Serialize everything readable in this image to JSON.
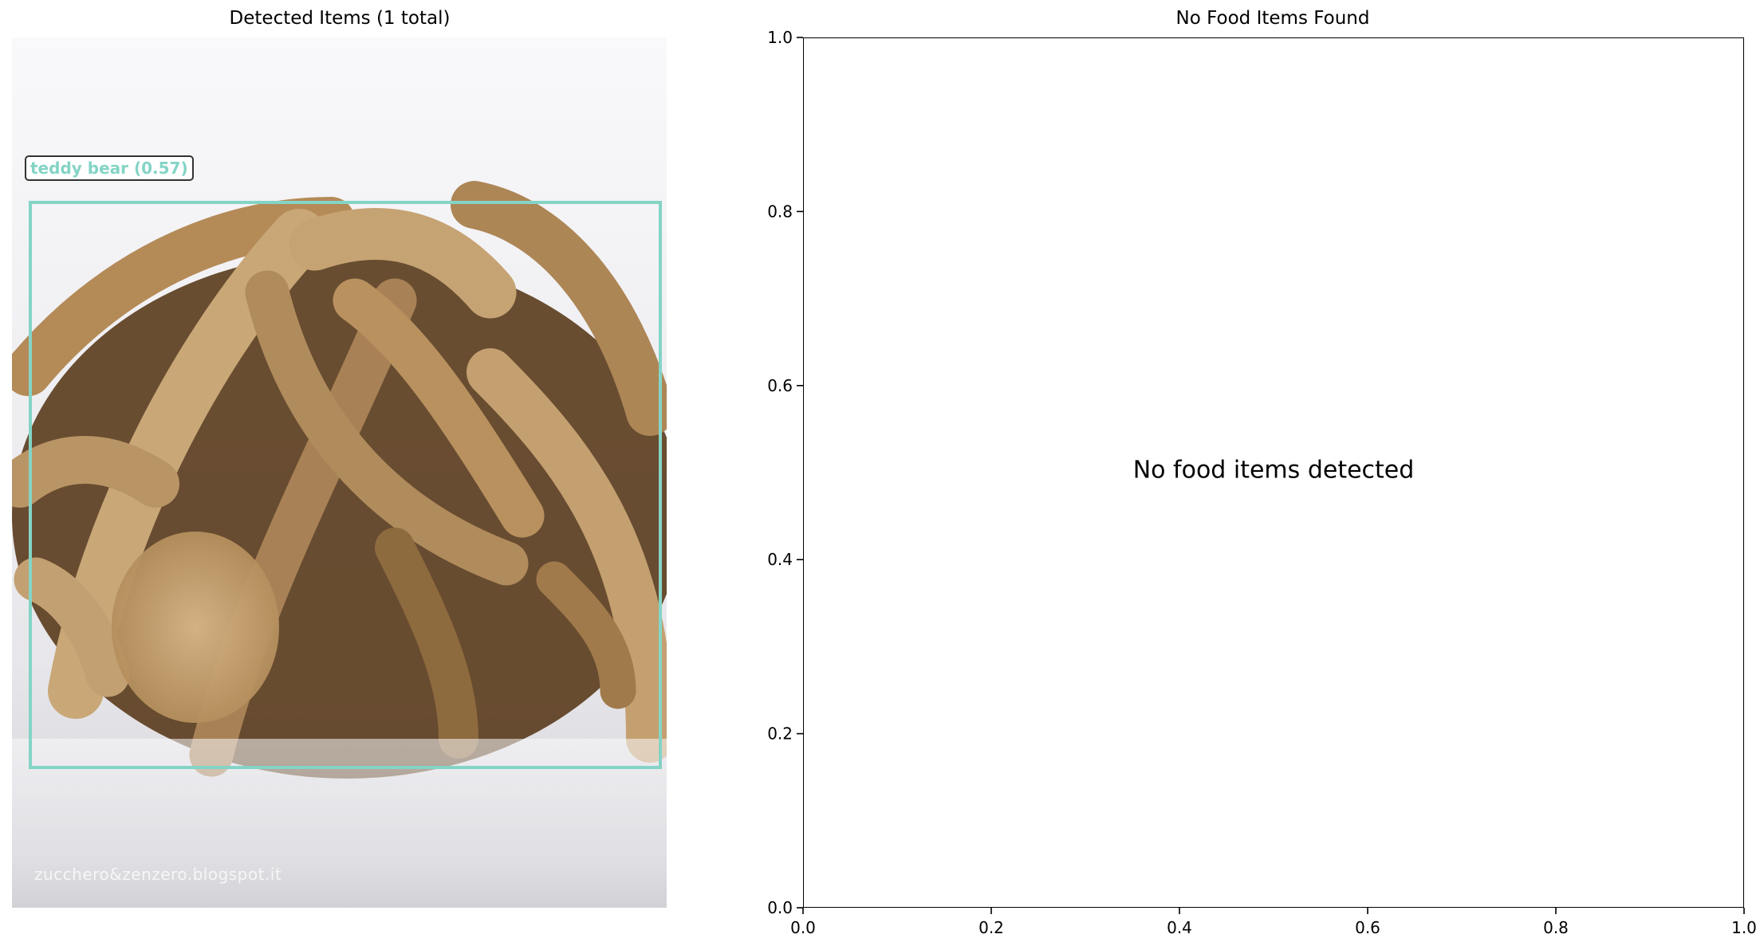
{
  "left_panel": {
    "title": "Detected Items (1 total)",
    "detection": {
      "label": "teddy bear (0.57)",
      "color": "#84d4c6"
    },
    "watermark": "zucchero&zenzero.blogspot.it"
  },
  "chart_data": {
    "type": "scatter",
    "title": "No Food Items Found",
    "annotation": "No food items detected",
    "xlim": [
      0.0,
      1.0
    ],
    "ylim": [
      0.0,
      1.0
    ],
    "xticks": [
      "0.0",
      "0.2",
      "0.4",
      "0.6",
      "0.8",
      "1.0"
    ],
    "yticks": [
      "0.0",
      "0.2",
      "0.4",
      "0.6",
      "0.8",
      "1.0"
    ],
    "series": [],
    "grid": false
  }
}
